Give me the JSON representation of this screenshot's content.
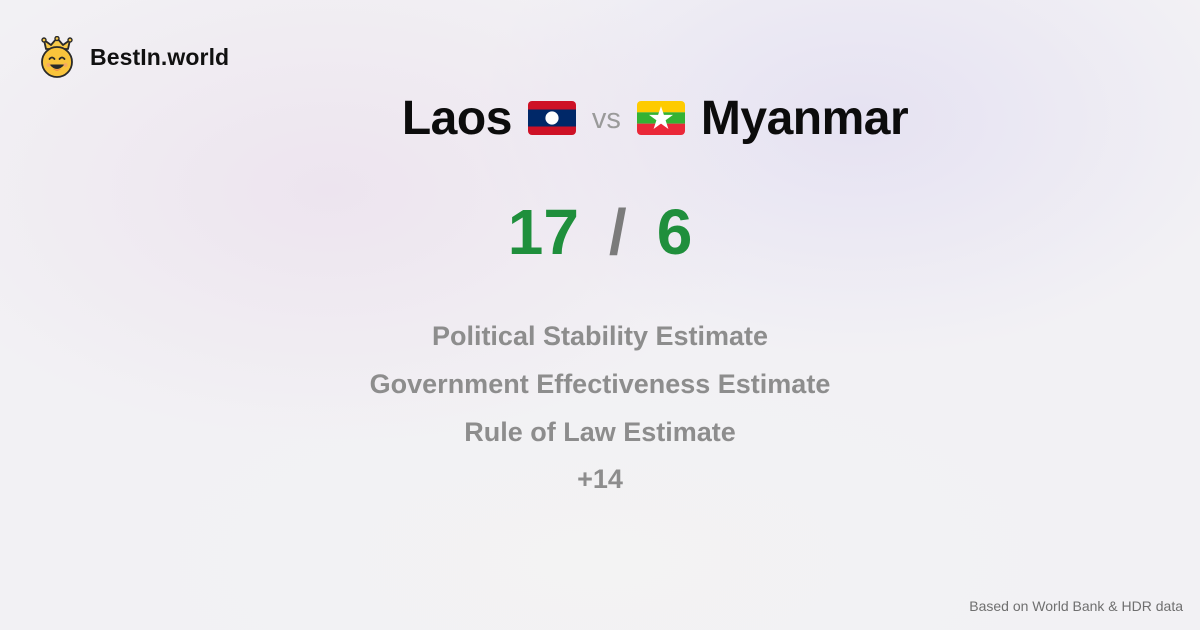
{
  "brand": {
    "name": "BestIn.world",
    "logo_icon": "smiling-crown-face-icon"
  },
  "comparison": {
    "left_country": "Laos",
    "left_flag_icon": "laos-flag-icon",
    "vs_label": "vs",
    "right_country": "Myanmar",
    "right_flag_icon": "myanmar-flag-icon"
  },
  "score": {
    "left": "17",
    "separator": "/",
    "right": "6"
  },
  "metrics": [
    "Political Stability Estimate",
    "Government Effectiveness Estimate",
    "Rule of Law Estimate"
  ],
  "more_label": "+14",
  "source_label": "Based on World Bank & HDR data",
  "colors": {
    "score_green": "#1f8f3c",
    "muted_gray": "#8d8d8d",
    "title_black": "#0c0c0c"
  }
}
